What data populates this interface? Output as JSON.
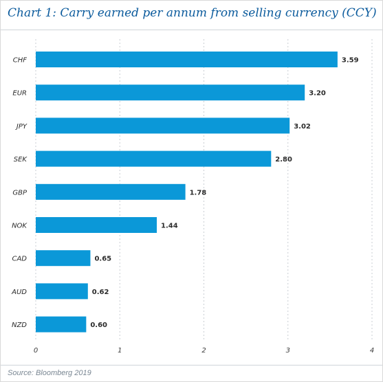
{
  "chart_data": {
    "type": "bar",
    "orientation": "horizontal",
    "title": "Chart 1: Carry earned per annum from selling currency (CCY)",
    "source": "Source: Bloomberg 2019",
    "categories": [
      "CHF",
      "EUR",
      "JPY",
      "SEK",
      "GBP",
      "NOK",
      "CAD",
      "AUD",
      "NZD"
    ],
    "values": [
      3.59,
      3.2,
      3.02,
      2.8,
      1.78,
      1.44,
      0.65,
      0.62,
      0.6
    ],
    "value_labels": [
      "3.59",
      "3.20",
      "3.02",
      "2.80",
      "1.78",
      "1.44",
      "0.65",
      "0.62",
      "0.60"
    ],
    "xlim": [
      0,
      4
    ],
    "x_ticks": [
      "0",
      "1",
      "2",
      "3",
      "4"
    ],
    "xlabel": "",
    "ylabel": "",
    "grid": "vertical dashed",
    "legend": "none",
    "bar_color": "#0b98d8"
  }
}
